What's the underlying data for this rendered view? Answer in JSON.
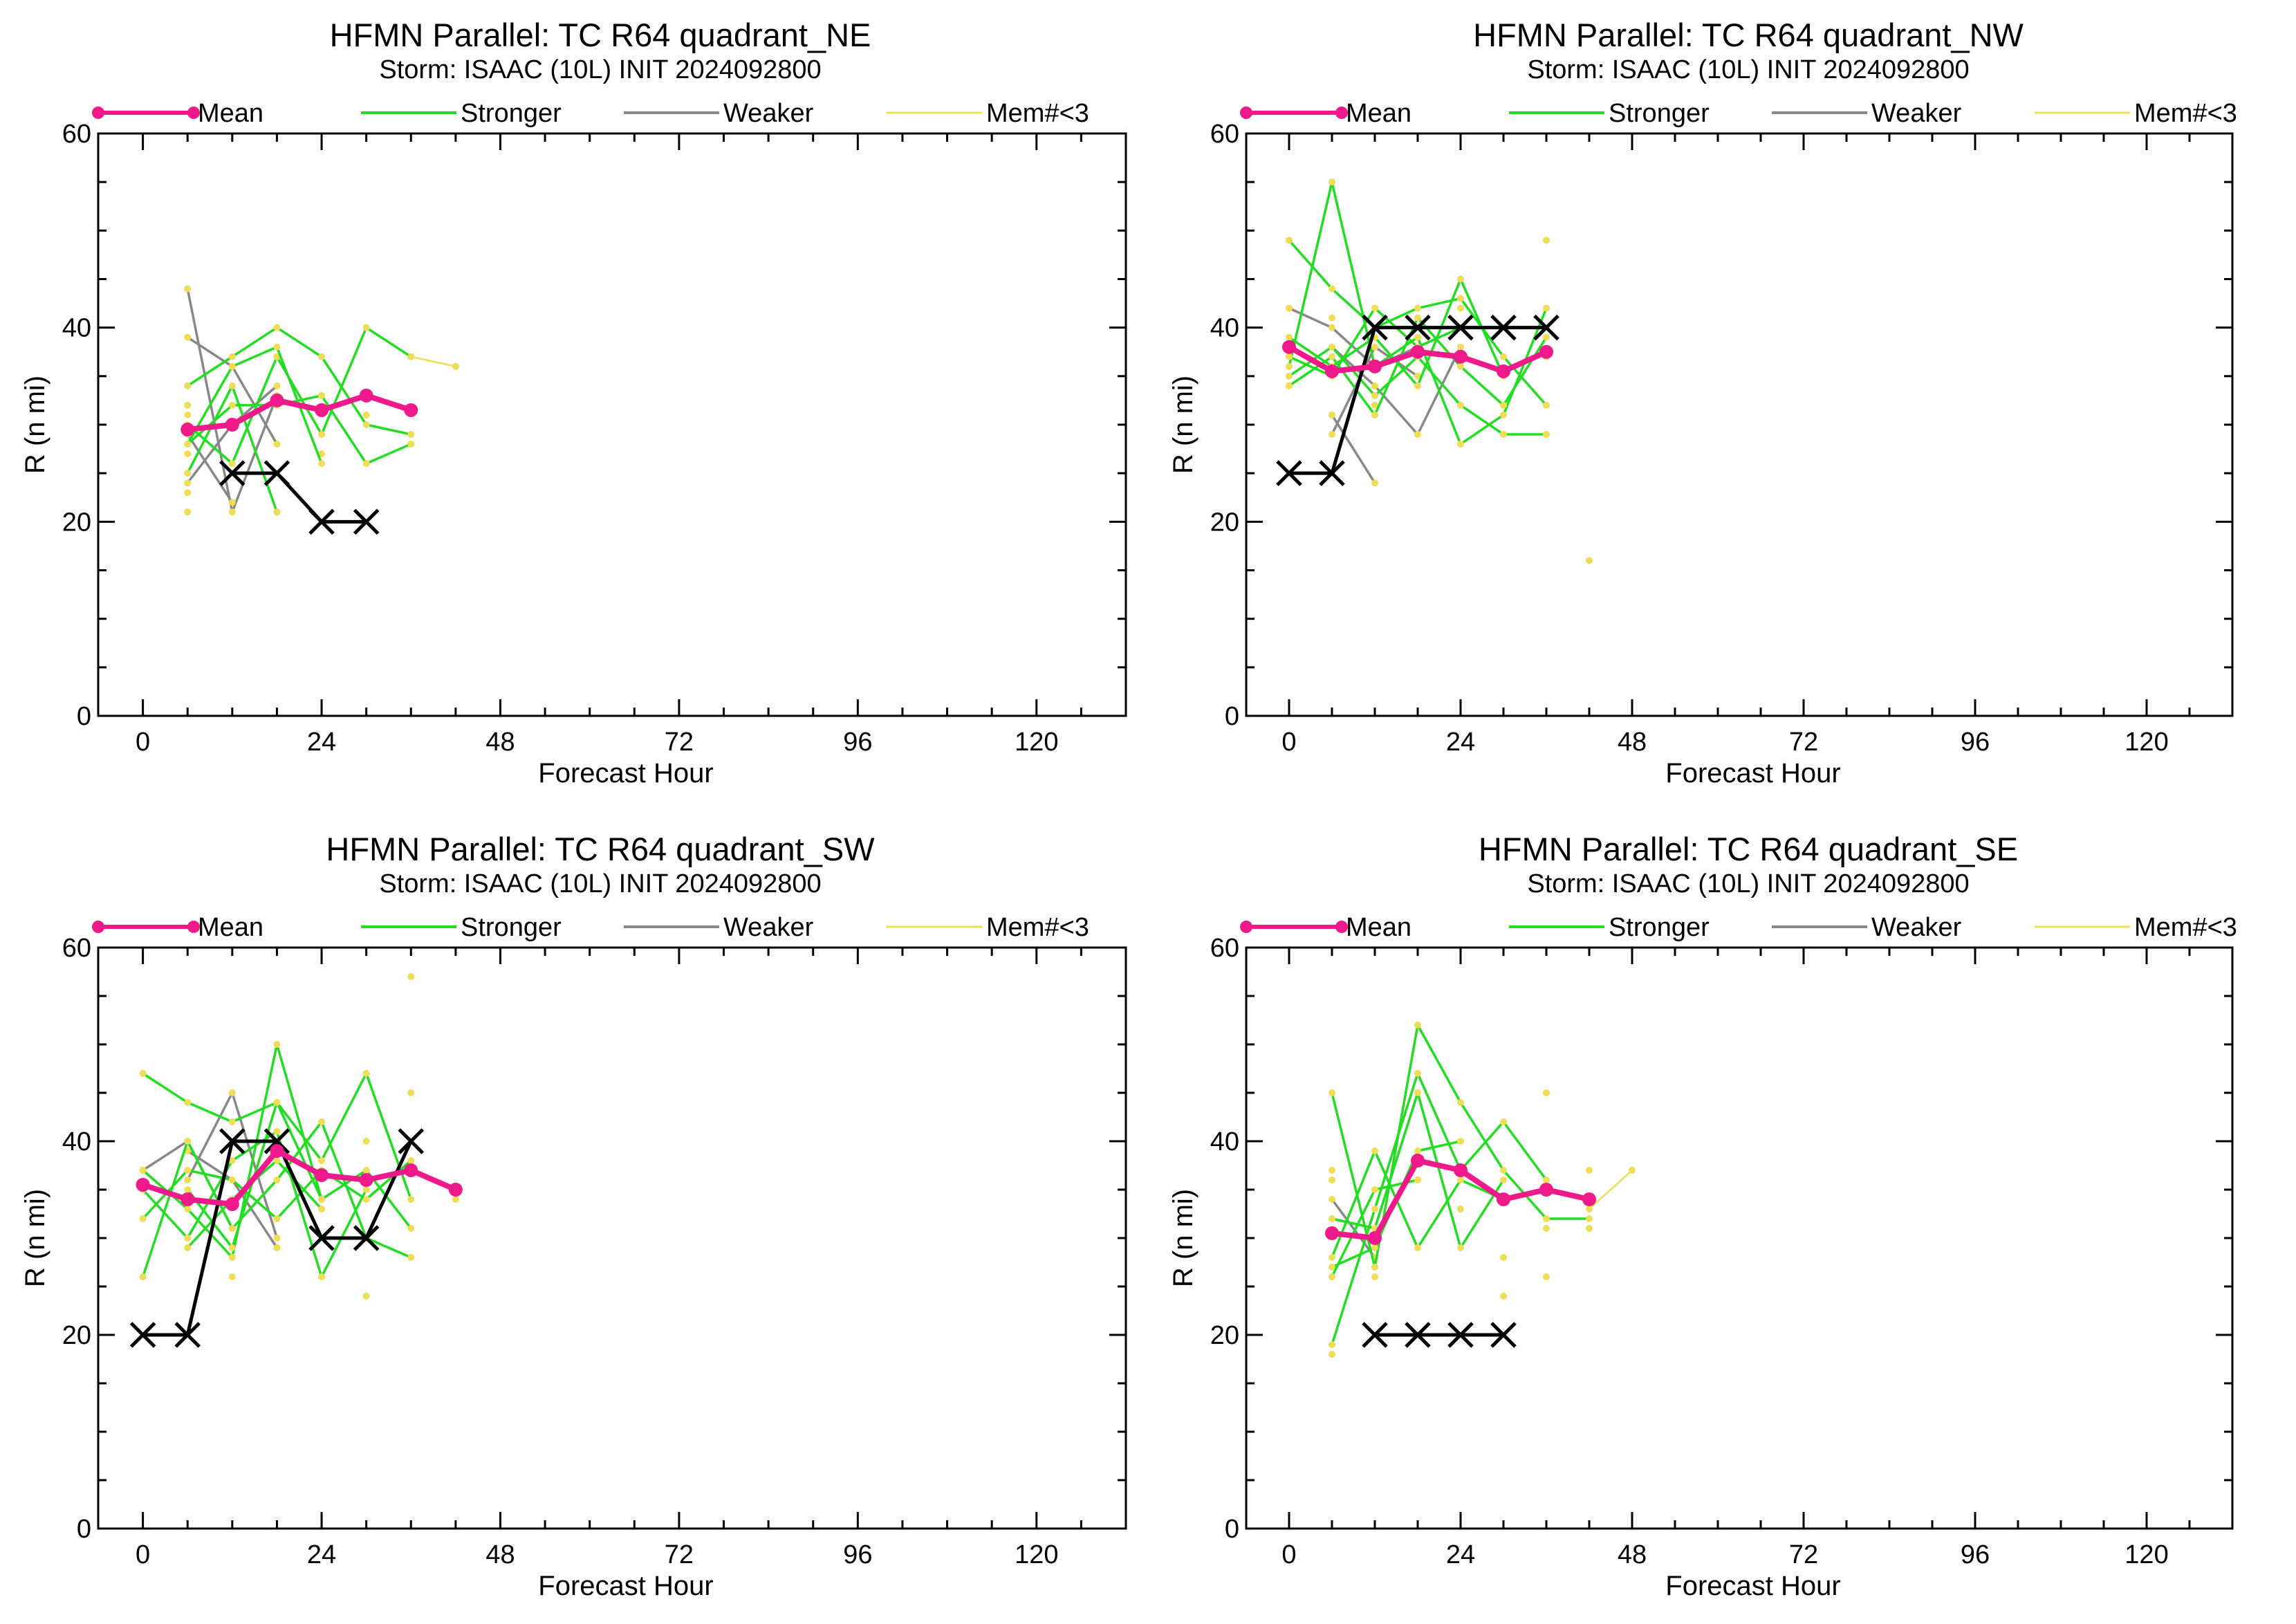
{
  "colors": {
    "mean": "#ee1a8c",
    "stronger": "#22dd22",
    "weaker": "#888888",
    "few_members": "#eedd55",
    "observed": "#000000"
  },
  "legend": {
    "mean": "Mean",
    "stronger": "Stronger",
    "weaker": "Weaker",
    "few_members": "Mem#<3"
  },
  "chart_data": [
    {
      "type": "line",
      "title": "HFMN Parallel: TC  R64 quadrant_NE",
      "subtitle": "Storm: ISAAC (10L) INIT 2024092800",
      "xlabel": "Forecast Hour",
      "ylabel": "R (n mi)",
      "xlim": [
        -6,
        132
      ],
      "ylim": [
        0,
        60
      ],
      "xticks": [
        0,
        24,
        48,
        72,
        96,
        120
      ],
      "yticks": [
        0,
        20,
        40,
        60
      ],
      "series": [
        {
          "name": "Mean",
          "x": [
            6,
            12,
            18,
            24,
            30,
            36
          ],
          "y": [
            29.5,
            30,
            32.5,
            31.5,
            33,
            31.5
          ]
        },
        {
          "x": [
            12,
            18,
            24,
            30
          ],
          "y": [
            25,
            25,
            20,
            20
          ]
        },
        {
          "x": [
            6,
            12,
            18,
            24,
            30,
            36
          ],
          "y": [
            34,
            37,
            40,
            37,
            30,
            29
          ]
        },
        {
          "x": [
            6,
            12,
            18,
            24,
            30,
            36
          ],
          "y": [
            30,
            26,
            37,
            29,
            40,
            37
          ]
        },
        {
          "x": [
            6,
            12,
            18,
            24,
            30,
            36
          ],
          "y": [
            28,
            32,
            32,
            33,
            26,
            28
          ]
        },
        {
          "x": [
            6,
            12,
            18
          ],
          "y": [
            25,
            34,
            21
          ]
        },
        {
          "x": [
            6,
            12,
            18,
            24
          ],
          "y": [
            28,
            36,
            38,
            26
          ]
        },
        {
          "x": [
            6,
            12,
            18
          ],
          "y": [
            24,
            30,
            34
          ]
        },
        {
          "x": [
            6,
            12,
            18
          ],
          "y": [
            44,
            21,
            33
          ]
        },
        {
          "x": [
            6,
            12,
            18
          ],
          "y": [
            39,
            36,
            28
          ]
        },
        {
          "x": [
            6,
            12
          ],
          "y": [
            29,
            22
          ]
        },
        {
          "x": [
            36,
            42
          ],
          "y": [
            37,
            36
          ]
        },
        {
          "x": [
            6,
            6,
            6,
            6,
            6,
            12,
            12,
            18,
            24,
            30,
            36
          ],
          "y": [
            21,
            23,
            27,
            31,
            32,
            22,
            26,
            28,
            27,
            31,
            28
          ]
        }
      ]
    },
    {
      "type": "line",
      "title": "HFMN Parallel: TC  R64 quadrant_NW",
      "subtitle": "Storm: ISAAC (10L) INIT 2024092800",
      "xlabel": "Forecast Hour",
      "ylabel": "R (n mi)",
      "xlim": [
        -6,
        132
      ],
      "ylim": [
        0,
        60
      ],
      "xticks": [
        0,
        24,
        48,
        72,
        96,
        120
      ],
      "yticks": [
        0,
        20,
        40,
        60
      ],
      "series": [
        {
          "name": "Mean",
          "x": [
            0,
            6,
            12,
            18,
            24,
            30,
            36
          ],
          "y": [
            38,
            35.5,
            36,
            37.5,
            37,
            35.5,
            37.5
          ]
        },
        {
          "x": [
            0,
            6,
            12,
            18,
            24,
            30,
            36
          ],
          "y": [
            25,
            25,
            40,
            40,
            40,
            40,
            40
          ]
        },
        {
          "x": [
            0,
            6,
            12,
            18,
            24,
            30,
            36
          ],
          "y": [
            49,
            44,
            40,
            42,
            43,
            37,
            32
          ]
        },
        {
          "x": [
            0,
            6,
            12,
            18,
            24,
            30,
            36
          ],
          "y": [
            36,
            55,
            36,
            39,
            28,
            31,
            42
          ]
        },
        {
          "x": [
            0,
            6,
            12,
            18,
            24,
            30,
            36
          ],
          "y": [
            35,
            38,
            33,
            37,
            32,
            29,
            29
          ]
        },
        {
          "x": [
            0,
            6,
            12,
            18,
            24,
            30
          ],
          "y": [
            39,
            36,
            39,
            34,
            45,
            35
          ]
        },
        {
          "x": [
            0,
            6,
            12,
            18,
            24,
            30,
            36
          ],
          "y": [
            34,
            37,
            31,
            41,
            36,
            32,
            39
          ]
        },
        {
          "x": [
            0,
            6,
            12,
            18,
            24
          ],
          "y": [
            37,
            35,
            42,
            38,
            40
          ]
        },
        {
          "x": [
            6,
            12,
            18,
            24
          ],
          "y": [
            38,
            34,
            29,
            38
          ]
        },
        {
          "x": [
            0,
            6,
            12,
            18
          ],
          "y": [
            42,
            40,
            36,
            38
          ]
        },
        {
          "x": [
            6,
            12,
            18
          ],
          "y": [
            29,
            38,
            35
          ]
        },
        {
          "x": [
            6,
            12
          ],
          "y": [
            31,
            24
          ]
        },
        {
          "x": [
            0,
            0,
            6,
            12,
            24,
            36,
            36,
            42
          ],
          "y": [
            34,
            37,
            41,
            32,
            42,
            49,
            37,
            16
          ]
        }
      ]
    },
    {
      "type": "line",
      "title": "HFMN Parallel: TC  R64 quadrant_SW",
      "subtitle": "Storm: ISAAC (10L) INIT 2024092800",
      "xlabel": "Forecast Hour",
      "ylabel": "R (n mi)",
      "xlim": [
        -6,
        132
      ],
      "ylim": [
        0,
        60
      ],
      "xticks": [
        0,
        24,
        48,
        72,
        96,
        120
      ],
      "yticks": [
        0,
        20,
        40,
        60
      ],
      "series": [
        {
          "name": "Mean",
          "x": [
            0,
            6,
            12,
            18,
            24,
            30,
            36,
            42
          ],
          "y": [
            35.5,
            34,
            33.5,
            39,
            36.5,
            36,
            37,
            35
          ]
        },
        {
          "x": [
            0,
            6,
            12,
            18,
            24,
            30,
            36
          ],
          "y": [
            20,
            20,
            40,
            40,
            30,
            30,
            40
          ]
        },
        {
          "x": [
            0,
            6,
            12,
            18,
            24,
            30,
            36
          ],
          "y": [
            47,
            44,
            42,
            44,
            38,
            47,
            34
          ]
        },
        {
          "x": [
            0,
            6,
            12,
            18,
            24,
            30,
            36
          ],
          "y": [
            26,
            40,
            31,
            36,
            42,
            30,
            28
          ]
        },
        {
          "x": [
            0,
            6,
            12,
            18,
            24,
            30,
            36
          ],
          "y": [
            37,
            33,
            28,
            50,
            34,
            37,
            31
          ]
        },
        {
          "x": [
            0,
            6,
            12,
            18,
            24,
            30,
            36
          ],
          "y": [
            32,
            37,
            36,
            32,
            37,
            34,
            38
          ]
        },
        {
          "x": [
            0,
            6,
            12,
            18,
            24,
            30
          ],
          "y": [
            35,
            30,
            38,
            41,
            26,
            35
          ]
        },
        {
          "x": [
            6,
            12,
            18,
            24
          ],
          "y": [
            35,
            29,
            44,
            34
          ]
        },
        {
          "x": [
            6,
            12,
            18,
            24
          ],
          "y": [
            29,
            34,
            38,
            33
          ]
        },
        {
          "x": [
            6,
            12,
            18
          ],
          "y": [
            36,
            45,
            30
          ]
        },
        {
          "x": [
            0,
            6,
            12
          ],
          "y": [
            37,
            40,
            31
          ]
        },
        {
          "x": [
            6,
            12,
            18
          ],
          "y": [
            39,
            36,
            29
          ]
        },
        {
          "x": [
            36,
            42
          ],
          "y": [
            37,
            35
          ]
        },
        {
          "x": [
            12,
            18,
            24,
            30,
            30,
            36,
            36,
            42
          ],
          "y": [
            26,
            29,
            26,
            24,
            40,
            45,
            57,
            34
          ]
        }
      ]
    },
    {
      "type": "line",
      "title": "HFMN Parallel: TC  R64 quadrant_SE",
      "subtitle": "Storm: ISAAC (10L) INIT 2024092800",
      "xlabel": "Forecast Hour",
      "ylabel": "R (n mi)",
      "xlim": [
        -6,
        132
      ],
      "ylim": [
        0,
        60
      ],
      "xticks": [
        0,
        24,
        48,
        72,
        96,
        120
      ],
      "yticks": [
        0,
        20,
        40,
        60
      ],
      "series": [
        {
          "name": "Mean",
          "x": [
            6,
            12,
            18,
            24,
            30,
            36,
            42
          ],
          "y": [
            30.5,
            30,
            38,
            37,
            34,
            35,
            34
          ]
        },
        {
          "x": [
            12,
            18,
            24,
            30
          ],
          "y": [
            20,
            20,
            20,
            20
          ]
        },
        {
          "x": [
            6,
            12,
            18,
            24,
            30,
            36,
            42
          ],
          "y": [
            45,
            27,
            52,
            44,
            37,
            32,
            32
          ]
        },
        {
          "x": [
            6,
            12,
            18,
            24,
            30,
            36
          ],
          "y": [
            19,
            33,
            47,
            37,
            42,
            36
          ]
        },
        {
          "x": [
            6,
            12,
            18,
            24,
            30
          ],
          "y": [
            28,
            39,
            29,
            36,
            34
          ]
        },
        {
          "x": [
            6,
            12,
            18,
            24,
            30
          ],
          "y": [
            32,
            31,
            45,
            29,
            36
          ]
        },
        {
          "x": [
            6,
            12,
            18,
            24
          ],
          "y": [
            27,
            29,
            39,
            40
          ]
        },
        {
          "x": [
            6,
            12,
            18
          ],
          "y": [
            26,
            35,
            36
          ]
        },
        {
          "x": [
            6,
            12
          ],
          "y": [
            34,
            28
          ]
        },
        {
          "x": [
            42,
            48
          ],
          "y": [
            33,
            37
          ]
        },
        {
          "x": [
            6,
            6,
            6,
            12,
            24,
            30,
            30,
            36,
            36,
            36,
            42,
            42
          ],
          "y": [
            18,
            36,
            37,
            26,
            33,
            24,
            28,
            26,
            31,
            45,
            31,
            37
          ]
        }
      ]
    }
  ]
}
